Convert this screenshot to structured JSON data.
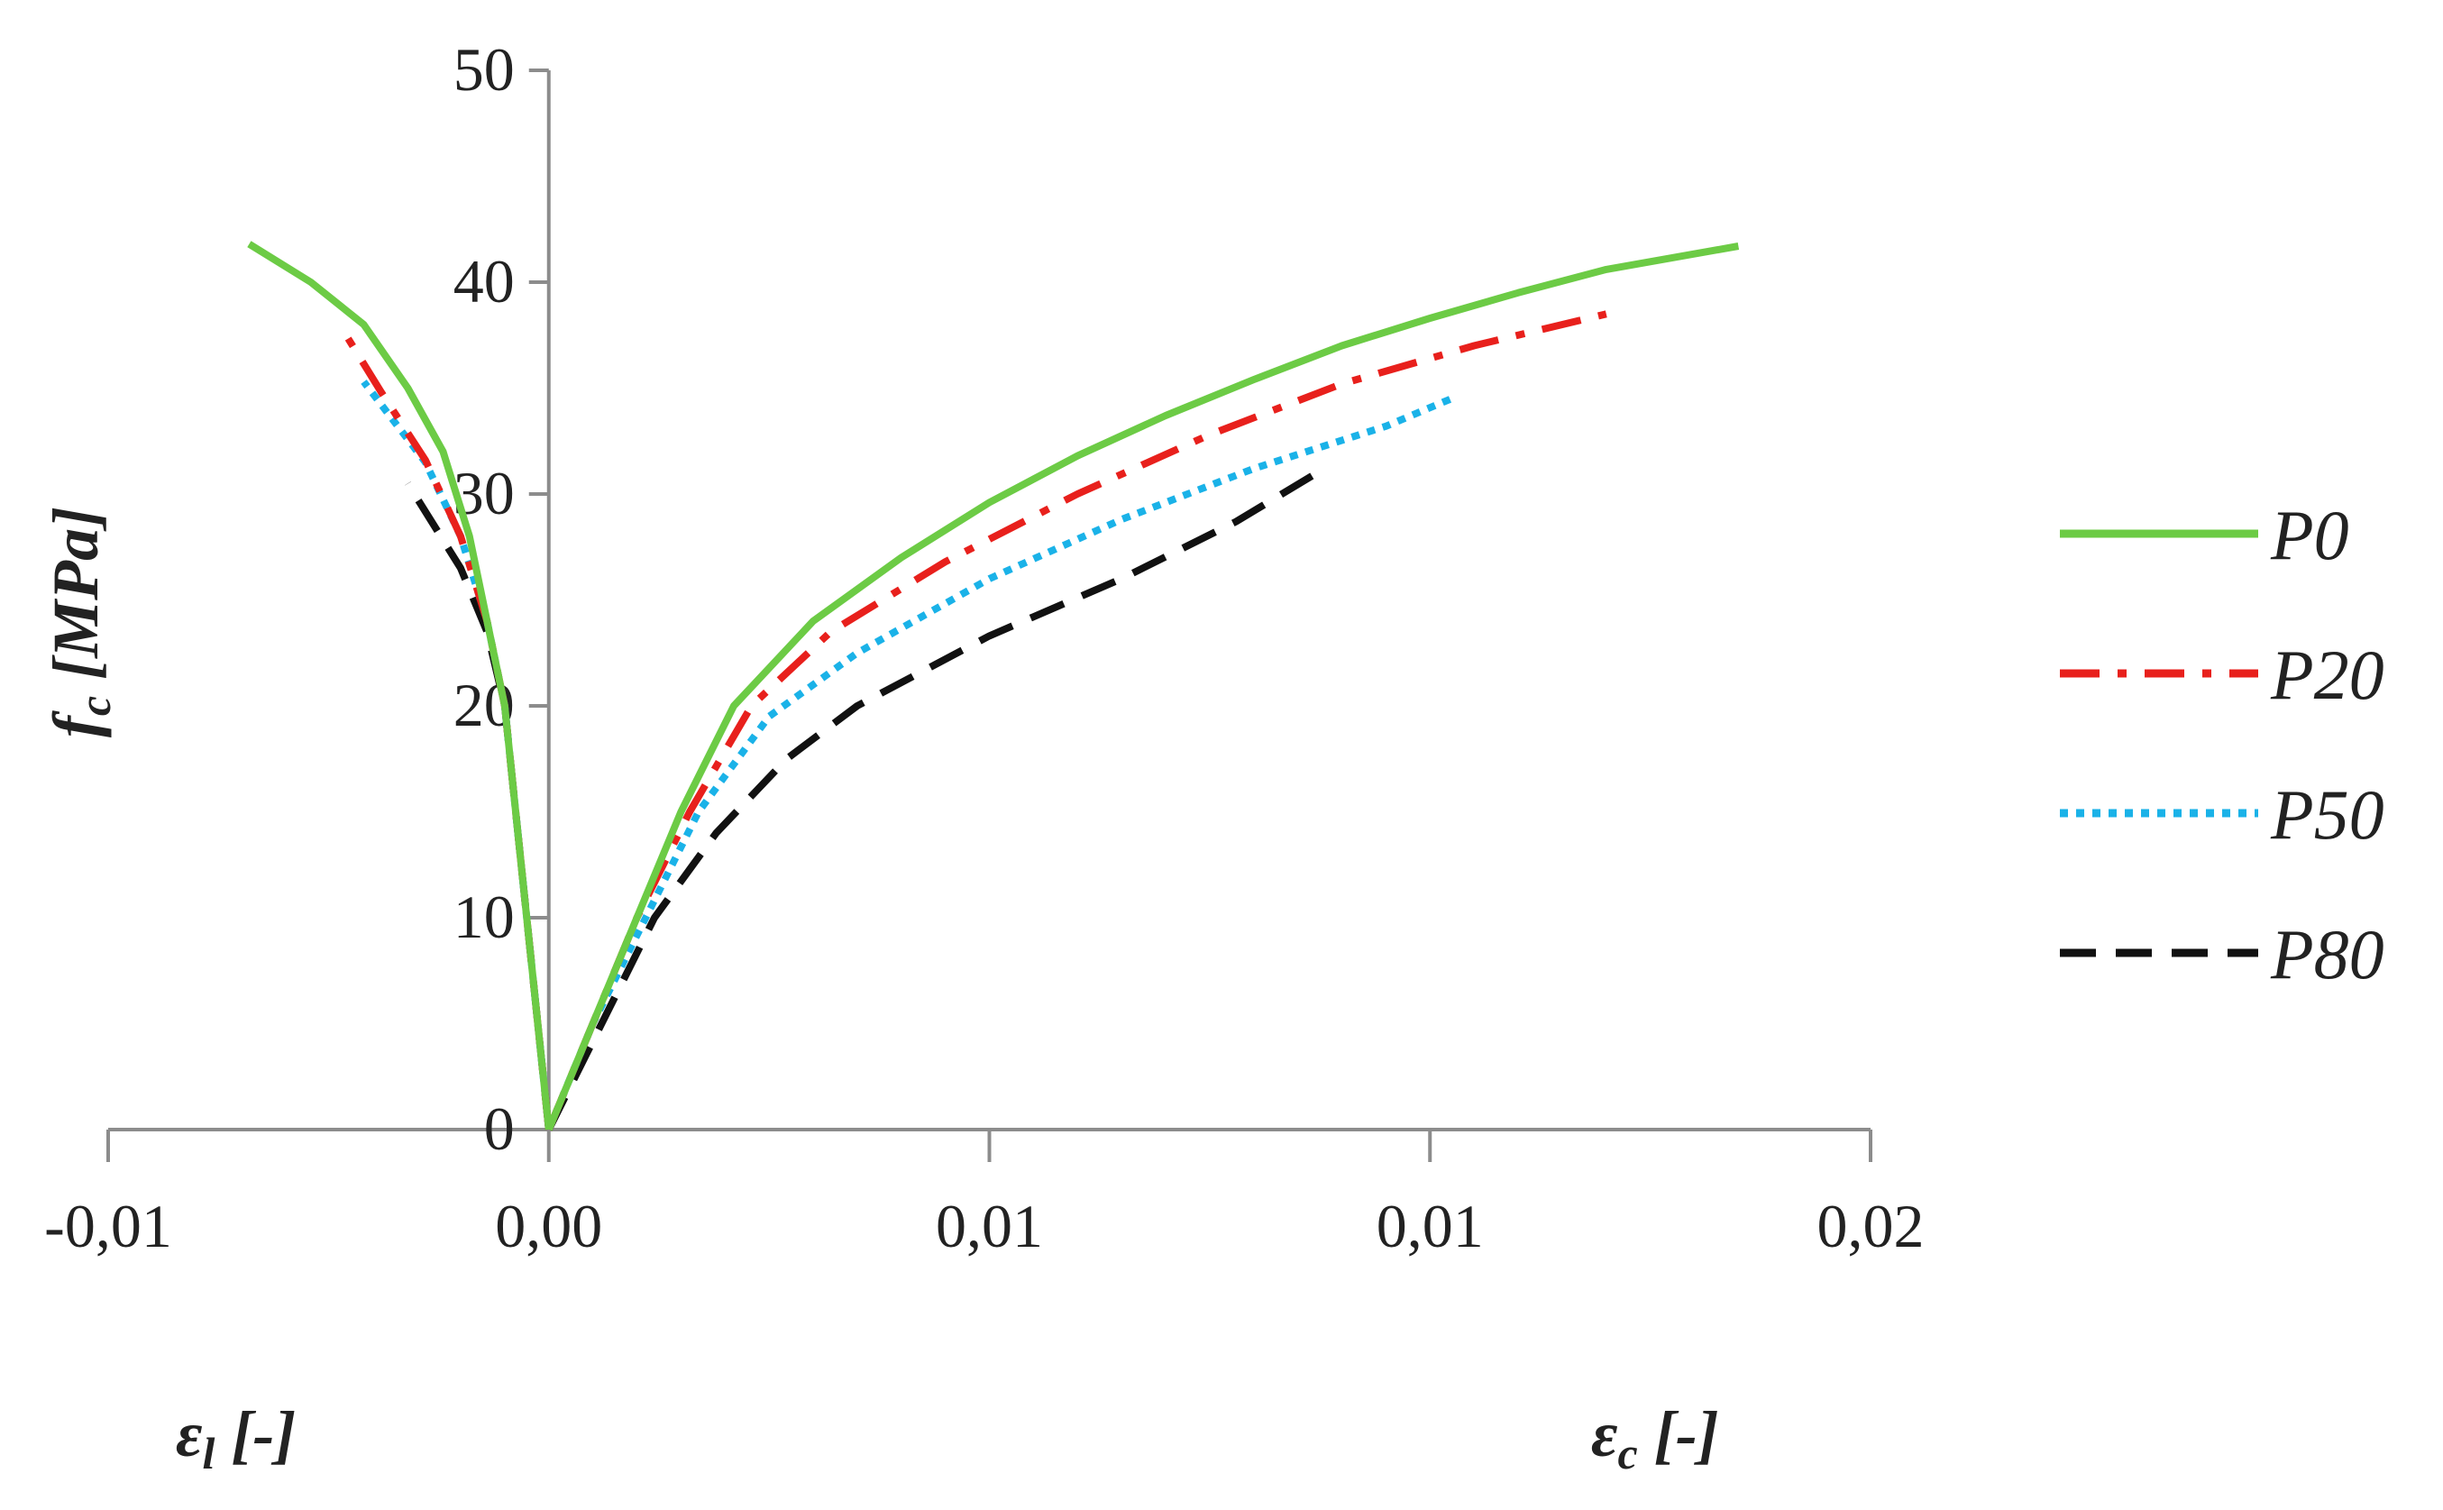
{
  "chart_data": {
    "type": "line",
    "title": "",
    "ylabel": {
      "main": "f",
      "sub": "c",
      "unit": " [MPa]"
    },
    "xlabel_left": {
      "main": "ε",
      "sub": "l",
      "unit": " [-]"
    },
    "xlabel_right": {
      "main": "ε",
      "sub": "c",
      "unit": " [-]"
    },
    "xlim": [
      -0.005,
      0.015
    ],
    "ylim": [
      0,
      50
    ],
    "x_ticks": [
      {
        "value": -0.005,
        "label": "-0,01"
      },
      {
        "value": 0.0,
        "label": "0,00"
      },
      {
        "value": 0.005,
        "label": "0,01"
      },
      {
        "value": 0.01,
        "label": "0,01"
      },
      {
        "value": 0.015,
        "label": "0,02"
      }
    ],
    "y_ticks": [
      {
        "value": 0,
        "label": "0"
      },
      {
        "value": 10,
        "label": "10"
      },
      {
        "value": 20,
        "label": "20"
      },
      {
        "value": 30,
        "label": "30"
      },
      {
        "value": 40,
        "label": "40"
      },
      {
        "value": 50,
        "label": "50"
      }
    ],
    "grid": false,
    "legend_position": "right",
    "series": [
      {
        "name": "P0",
        "color": "#6CCB45",
        "dash": "solid",
        "lateral": [
          [
            0,
            0
          ],
          [
            -0.0001,
            4
          ],
          [
            -0.0002,
            8
          ],
          [
            -0.0003,
            12
          ],
          [
            -0.0004,
            16
          ],
          [
            -0.0005,
            20
          ],
          [
            -0.0007,
            24
          ],
          [
            -0.0009,
            28
          ],
          [
            -0.0012,
            32
          ],
          [
            -0.0016,
            35
          ],
          [
            -0.0021,
            38
          ],
          [
            -0.0027,
            40
          ],
          [
            -0.0034,
            41.8
          ]
        ],
        "axial": [
          [
            0,
            0
          ],
          [
            0.0005,
            5
          ],
          [
            0.001,
            10
          ],
          [
            0.0015,
            15
          ],
          [
            0.0021,
            20
          ],
          [
            0.003,
            24
          ],
          [
            0.004,
            27
          ],
          [
            0.005,
            29.6
          ],
          [
            0.006,
            31.8
          ],
          [
            0.007,
            33.7
          ],
          [
            0.008,
            35.4
          ],
          [
            0.009,
            37
          ],
          [
            0.01,
            38.3
          ],
          [
            0.011,
            39.5
          ],
          [
            0.012,
            40.6
          ],
          [
            0.0135,
            41.7
          ]
        ]
      },
      {
        "name": "P20",
        "color": "#E8201C",
        "dash": "dashdot",
        "lateral": [
          [
            0,
            0
          ],
          [
            -0.0001,
            4
          ],
          [
            -0.0002,
            8
          ],
          [
            -0.0003,
            12
          ],
          [
            -0.0004,
            16
          ],
          [
            -0.0005,
            20
          ],
          [
            -0.0007,
            24
          ],
          [
            -0.001,
            28
          ],
          [
            -0.0014,
            31.6
          ],
          [
            -0.0019,
            34.8
          ],
          [
            -0.0023,
            37.5
          ]
        ],
        "axial": [
          [
            0,
            0
          ],
          [
            0.0005,
            5
          ],
          [
            0.001,
            10
          ],
          [
            0.0016,
            15
          ],
          [
            0.0023,
            20
          ],
          [
            0.0032,
            23.5
          ],
          [
            0.0045,
            26.8
          ],
          [
            0.006,
            30
          ],
          [
            0.0075,
            32.8
          ],
          [
            0.009,
            35.2
          ],
          [
            0.0105,
            37
          ],
          [
            0.012,
            38.5
          ]
        ]
      },
      {
        "name": "P50",
        "color": "#1AB2E8",
        "dash": "dotted",
        "lateral": [
          [
            0,
            0
          ],
          [
            -0.0001,
            4
          ],
          [
            -0.0002,
            8
          ],
          [
            -0.0003,
            12
          ],
          [
            -0.0004,
            16
          ],
          [
            -0.0005,
            20
          ],
          [
            -0.0007,
            24
          ],
          [
            -0.001,
            28
          ],
          [
            -0.0014,
            31.5
          ],
          [
            -0.0021,
            35.3
          ]
        ],
        "axial": [
          [
            0,
            0
          ],
          [
            0.0005,
            5
          ],
          [
            0.0011,
            10
          ],
          [
            0.0017,
            15
          ],
          [
            0.0025,
            19.5
          ],
          [
            0.0035,
            22.5
          ],
          [
            0.005,
            26
          ],
          [
            0.0065,
            28.8
          ],
          [
            0.008,
            31.2
          ],
          [
            0.0095,
            33.2
          ],
          [
            0.0103,
            34.6
          ]
        ]
      },
      {
        "name": "P80",
        "color": "#111111",
        "dash": "dashed",
        "lateral": [
          [
            0,
            0
          ],
          [
            -0.0001,
            4
          ],
          [
            -0.0002,
            8
          ],
          [
            -0.0003,
            12
          ],
          [
            -0.0004,
            16
          ],
          [
            -0.0005,
            20
          ],
          [
            -0.0007,
            23.5
          ],
          [
            -0.001,
            26.5
          ],
          [
            -0.0016,
            30.5
          ]
        ],
        "axial": [
          [
            0,
            0
          ],
          [
            0.0006,
            5
          ],
          [
            0.0012,
            10
          ],
          [
            0.0019,
            14
          ],
          [
            0.0027,
            17.5
          ],
          [
            0.0035,
            20
          ],
          [
            0.005,
            23.3
          ],
          [
            0.0065,
            26
          ],
          [
            0.0078,
            28.7
          ],
          [
            0.0088,
            31.2
          ]
        ]
      }
    ]
  }
}
